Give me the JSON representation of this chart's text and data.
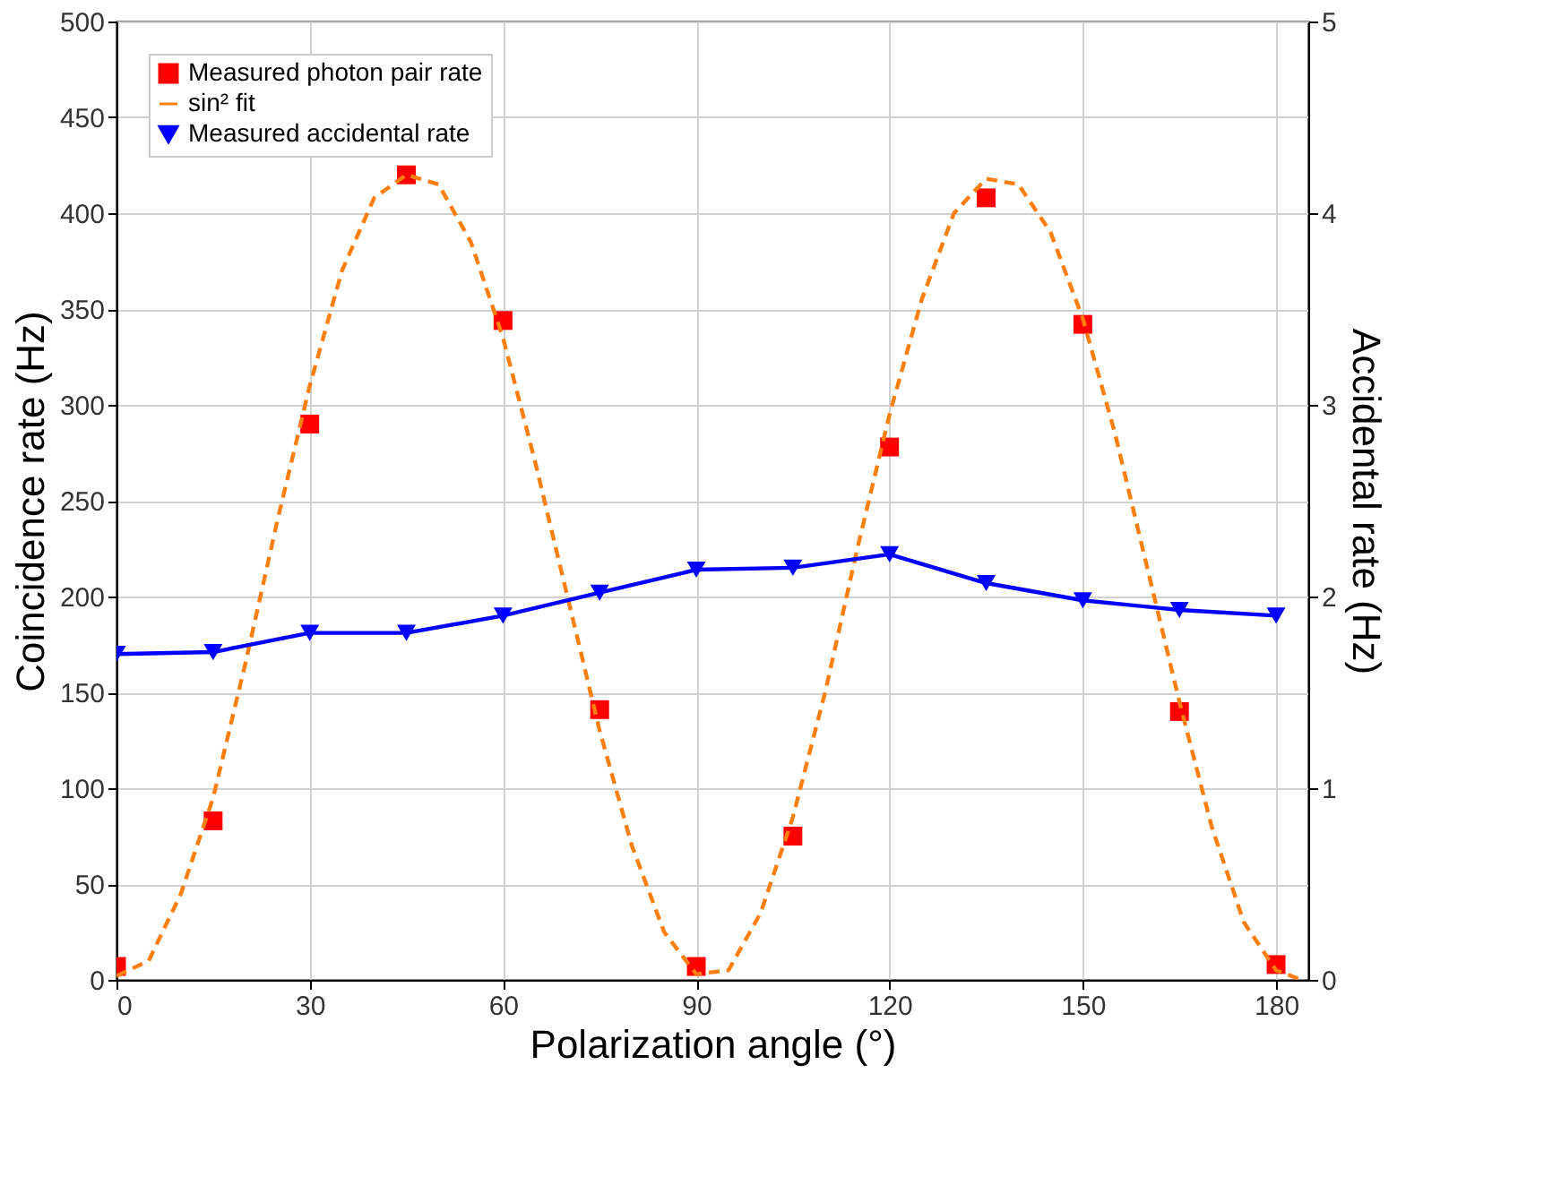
{
  "chart_data": {
    "type": "scatter",
    "xlabel": "Polarization angle (°)",
    "ylabel": "Coincidence rate (Hz)",
    "y2label": "Accidental rate (Hz)",
    "xlim": [
      0,
      185
    ],
    "xticks": [
      0,
      30,
      60,
      90,
      120,
      150,
      180
    ],
    "ylim": [
      0,
      500
    ],
    "yticks": [
      0,
      50,
      100,
      150,
      200,
      250,
      300,
      350,
      400,
      450,
      500
    ],
    "y2lim": [
      0,
      5
    ],
    "y2ticks": [
      0,
      1,
      2,
      3,
      4,
      5
    ],
    "grid": true,
    "legend": "top left",
    "series": [
      {
        "name": "Measured photon pair rate",
        "marker": "square",
        "color": "#ff0000",
        "x": [
          0,
          15,
          30,
          45,
          60,
          75,
          90,
          105,
          120,
          135,
          150,
          165,
          180
        ],
        "values": [
          7,
          83,
          290,
          420,
          344,
          141,
          7,
          75,
          278,
          408,
          342,
          140,
          8
        ]
      },
      {
        "name": "sin² fit",
        "type": "line",
        "line_style": "dashed",
        "marker": "none",
        "color": "#ff7f0e",
        "x": [
          0,
          5,
          10,
          15,
          20,
          25,
          30,
          35,
          40,
          45,
          50,
          55,
          60,
          65,
          70,
          75,
          80,
          85,
          90,
          95,
          100,
          105,
          110,
          115,
          120,
          125,
          130,
          135,
          140,
          145,
          150,
          155,
          160,
          165,
          170,
          175,
          180,
          184
        ],
        "values": [
          2,
          10,
          45,
          95,
          165,
          240,
          310,
          370,
          408,
          420,
          415,
          385,
          335,
          270,
          200,
          130,
          70,
          25,
          3,
          5,
          35,
          85,
          150,
          225,
          295,
          355,
          400,
          418,
          415,
          390,
          345,
          285,
          215,
          145,
          80,
          30,
          5,
          0
        ]
      },
      {
        "name": "Measured accidental rate",
        "type": "line",
        "axis": "y2",
        "marker": "triangle",
        "line_style": "solid",
        "color": "#0000ff",
        "x": [
          0,
          15,
          30,
          45,
          60,
          75,
          90,
          105,
          120,
          135,
          150,
          165,
          180
        ],
        "values": [
          1.7,
          1.71,
          1.81,
          1.81,
          1.9,
          2.02,
          2.14,
          2.15,
          2.22,
          2.07,
          1.98,
          1.93,
          1.9
        ]
      }
    ]
  }
}
